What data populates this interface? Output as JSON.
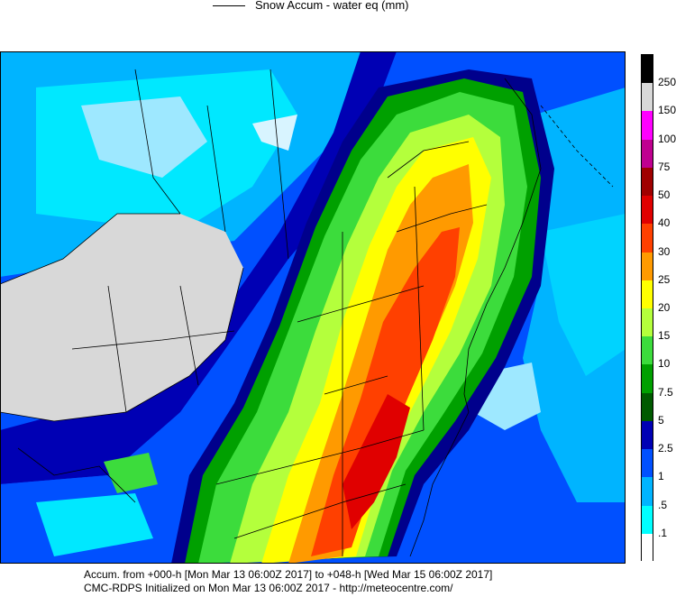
{
  "header": {
    "title": "Snow Accum - water eq (mm)"
  },
  "footer": {
    "line1": "Accum. from +000-h [Mon Mar 13 06:00Z 2017] to +048-h [Wed Mar 15 06:00Z 2017]",
    "line2": "CMC-RDPS Initialized on Mon Mar 13 06:00Z 2017 - http://meteocentre.com/"
  },
  "colorbar": {
    "levels": [
      {
        "label": "250",
        "color": "#000000"
      },
      {
        "label": "150",
        "color": "#d8d8d8"
      },
      {
        "label": "100",
        "color": "#ff00ff"
      },
      {
        "label": "75",
        "color": "#c00090"
      },
      {
        "label": "50",
        "color": "#a00000"
      },
      {
        "label": "40",
        "color": "#e00000"
      },
      {
        "label": "30",
        "color": "#ff4000"
      },
      {
        "label": "25",
        "color": "#ff9a00"
      },
      {
        "label": "20",
        "color": "#ffff00"
      },
      {
        "label": "15",
        "color": "#b4ff3c"
      },
      {
        "label": "10",
        "color": "#3cdc3c"
      },
      {
        "label": "7.5",
        "color": "#00a000"
      },
      {
        "label": "5",
        "color": "#005a00"
      },
      {
        "label": "2.5",
        "color": "#0000b4"
      },
      {
        "label": "1",
        "color": "#0050ff"
      },
      {
        "label": ".5",
        "color": "#00b4ff"
      },
      {
        "label": ".1",
        "color": "#00ffff"
      },
      {
        "label": "",
        "color": "#ffffff"
      }
    ]
  },
  "map": {
    "region": "Eastern North America",
    "fill_colors": {
      "ocean_light": "#9ee8ff",
      "trace": "#00e8ff",
      "light": "#00b4ff",
      "blue": "#0050ff",
      "dark_blue": "#0000b4",
      "navy": "#00008c",
      "dark_green": "#00a000",
      "green": "#3cdc3c",
      "yellow_green": "#b4ff3c",
      "yellow": "#ffff00",
      "orange": "#ff9a00",
      "red_orange": "#ff4000",
      "red": "#e00000",
      "no_snow": "#d8d8d8"
    }
  }
}
